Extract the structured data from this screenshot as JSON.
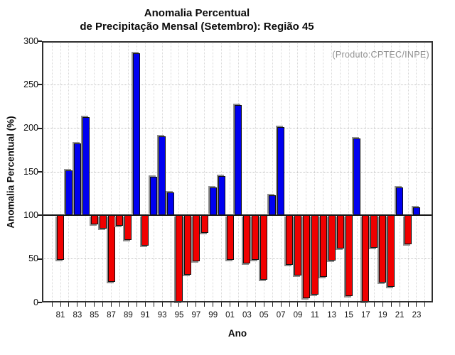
{
  "chart_data": {
    "type": "bar",
    "title_line1": "Anomalia Percentual",
    "title_line2": "de Precipitação Mensal (Setembro): Região 45",
    "annotation": "(Produto:CPTEC/INPE)",
    "xlabel": "Ano",
    "ylabel": "Anomalia Percentual (%)",
    "ylim": [
      0,
      300
    ],
    "yticks": [
      0,
      50,
      100,
      150,
      200,
      250,
      300
    ],
    "baseline": 100,
    "grid": "dotted",
    "legend": "none",
    "bar_colors": {
      "above_baseline": "#0000F0",
      "below_baseline": "#F00000"
    },
    "categories": [
      "81",
      "82",
      "83",
      "84",
      "85",
      "86",
      "87",
      "88",
      "89",
      "90",
      "91",
      "92",
      "93",
      "94",
      "95",
      "96",
      "97",
      "98",
      "99",
      "00",
      "01",
      "02",
      "03",
      "04",
      "05",
      "06",
      "07",
      "08",
      "09",
      "10",
      "11",
      "12",
      "13",
      "14",
      "15",
      "16",
      "17",
      "18",
      "19",
      "20",
      "21",
      "22",
      "23"
    ],
    "values": [
      49,
      152,
      183,
      213,
      90,
      85,
      24,
      88,
      72,
      286,
      65,
      144,
      191,
      126,
      1,
      32,
      47,
      80,
      132,
      145,
      49,
      227,
      45,
      49,
      26,
      123,
      201,
      43,
      31,
      5,
      9,
      29,
      48,
      62,
      7,
      188,
      1,
      63,
      23,
      18,
      132,
      67,
      109
    ],
    "xticklabels": [
      "81",
      "83",
      "85",
      "87",
      "89",
      "91",
      "93",
      "95",
      "97",
      "99",
      "01",
      "03",
      "05",
      "07",
      "09",
      "11",
      "13",
      "15",
      "17",
      "19",
      "21",
      "23"
    ]
  }
}
